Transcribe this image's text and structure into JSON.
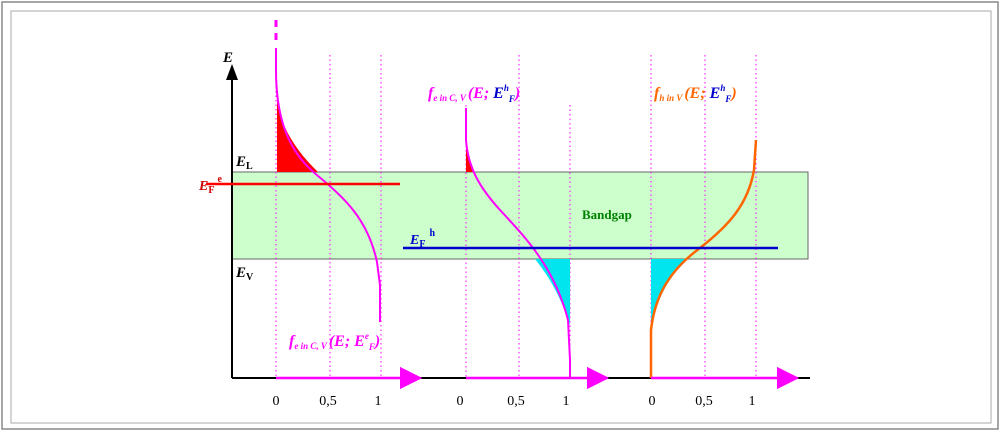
{
  "axis": {
    "energy_symbol": "E"
  },
  "levels": {
    "conduction": {
      "symbol": "E",
      "sub": "L"
    },
    "valence": {
      "symbol": "E",
      "sub": "V"
    },
    "electron_fermi": {
      "symbol": "E",
      "sub": "F",
      "sup": "e"
    },
    "hole_fermi": {
      "symbol": "E",
      "sub": "F",
      "sup": "h"
    }
  },
  "bandgap_label": "Bandgap",
  "panels": [
    {
      "ticks": [
        "0",
        "0,5",
        "1"
      ],
      "formula": {
        "f": "f",
        "sub": "e in C, V",
        "args_open": "(E; ",
        "E": "E",
        "sup": "e",
        "sub2": "F",
        "close": ")"
      }
    },
    {
      "ticks": [
        "0",
        "0,5",
        "1"
      ],
      "formula": {
        "f": "f",
        "sub": "e in C, V",
        "args_open": "(E; ",
        "E": "E",
        "sup": "h",
        "sub2": "F",
        "close": ")"
      }
    },
    {
      "ticks": [
        "0",
        "0,5",
        "1"
      ],
      "formula": {
        "f": "f",
        "sub": "h in V",
        "args_open": "(E; ",
        "E": "E",
        "sup": "h",
        "sub2": "F",
        "close": ")"
      }
    }
  ],
  "colors": {
    "magenta": "#ff00ff",
    "red": "#ff0000",
    "blue": "#0000cc",
    "orange": "#ff6600",
    "green_text": "#008000",
    "bandgap_fill": "#ccffcc",
    "cyan": "#00e5ee",
    "frame": "#888888"
  }
}
